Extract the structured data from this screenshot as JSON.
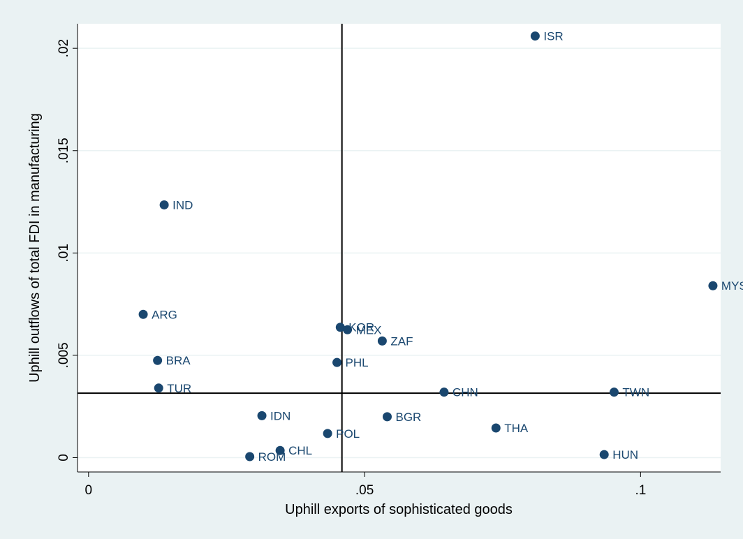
{
  "chart_data": {
    "type": "scatter",
    "title": "",
    "xlabel": "Uphill exports of sophisticated goods",
    "ylabel": "Uphill outflows of total FDI in manufacturing",
    "xlim": [
      -0.002,
      0.1145
    ],
    "ylim": [
      -0.0007,
      0.0212
    ],
    "xticks": [
      {
        "value": 0,
        "label": "0"
      },
      {
        "value": 0.05,
        "label": ".05"
      },
      {
        "value": 0.1,
        "label": ".1"
      }
    ],
    "yticks": [
      {
        "value": 0,
        "label": "0"
      },
      {
        "value": 0.005,
        "label": ".005"
      },
      {
        "value": 0.01,
        "label": ".01"
      },
      {
        "value": 0.015,
        "label": ".015"
      },
      {
        "value": 0.02,
        "label": ".02"
      }
    ],
    "grid": true,
    "reference_lines": {
      "x": 0.0459,
      "y": 0.00315
    },
    "marker_color": "#1a476f",
    "points": [
      {
        "label": "ISR",
        "x": 0.0809,
        "y": 0.0206
      },
      {
        "label": "IND",
        "x": 0.0137,
        "y": 0.01235
      },
      {
        "label": "MYS",
        "x": 0.1131,
        "y": 0.0084
      },
      {
        "label": "ARG",
        "x": 0.0099,
        "y": 0.007
      },
      {
        "label": "KOR",
        "x": 0.0456,
        "y": 0.00637
      },
      {
        "label": "MEX",
        "x": 0.0469,
        "y": 0.00625
      },
      {
        "label": "ZAF",
        "x": 0.0532,
        "y": 0.0057
      },
      {
        "label": "BRA",
        "x": 0.0125,
        "y": 0.00475
      },
      {
        "label": "PHL",
        "x": 0.045,
        "y": 0.00465
      },
      {
        "label": "TUR",
        "x": 0.0127,
        "y": 0.0034
      },
      {
        "label": "CHN",
        "x": 0.0644,
        "y": 0.0032
      },
      {
        "label": "TWN",
        "x": 0.0952,
        "y": 0.0032
      },
      {
        "label": "IDN",
        "x": 0.0314,
        "y": 0.00205
      },
      {
        "label": "BGR",
        "x": 0.0541,
        "y": 0.002
      },
      {
        "label": "THA",
        "x": 0.0738,
        "y": 0.00145
      },
      {
        "label": "POL",
        "x": 0.0433,
        "y": 0.00118
      },
      {
        "label": "CHL",
        "x": 0.0347,
        "y": 0.00035
      },
      {
        "label": "HUN",
        "x": 0.0934,
        "y": 0.00015
      },
      {
        "label": "ROM",
        "x": 0.0292,
        "y": 5e-05
      }
    ]
  }
}
